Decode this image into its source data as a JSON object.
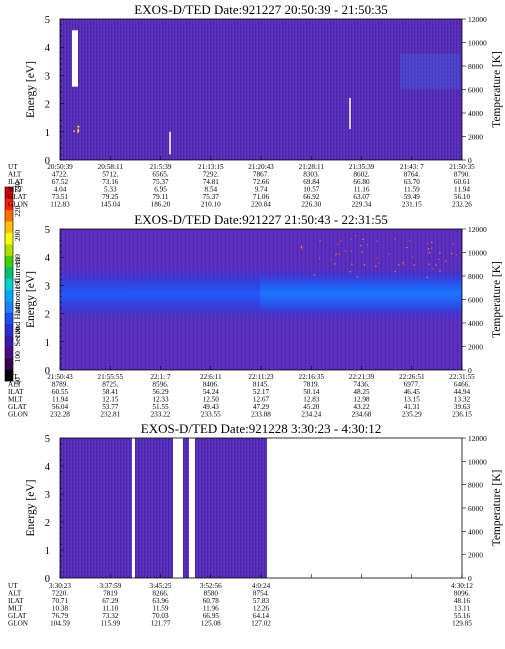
{
  "figure": {
    "y_left_label": "Energy [eV]",
    "y_right_label": "Temperature [K]",
    "colorbar": {
      "label": "Second Harmonic Current",
      "ticks": [
        "80",
        "100",
        "120",
        "140",
        "160",
        "180",
        "200",
        "220",
        "240"
      ],
      "colors": [
        "#000000",
        "#3a0050",
        "#4a0a8a",
        "#3a1aa8",
        "#2b2fd2",
        "#1a50f0",
        "#2080ff",
        "#00a8ff",
        "#00d0d0",
        "#00c070",
        "#40d000",
        "#b0e000",
        "#ffff00",
        "#ffc000",
        "#ff7000",
        "#ff2000",
        "#d00000"
      ]
    }
  },
  "chart_data": [
    {
      "type": "heatmap",
      "title": "EXOS-D/TED   Date:921227  20:50:39 - 21:50:35",
      "ylabel": "Energy [eV]",
      "ylim": [
        0,
        5
      ],
      "yticks": [
        "0",
        "1",
        "2",
        "3",
        "4",
        "5"
      ],
      "y2label": "Temperature [K]",
      "y2lim": [
        0,
        12000
      ],
      "y2ticks": [
        "0",
        "2000",
        "4000",
        "6000",
        "8000",
        "10000",
        "12000"
      ],
      "ephemeris_labels": [
        "UT",
        "ALT",
        "ILAT",
        "MLT",
        "GLAT",
        "GLON"
      ],
      "ephemeris": [
        [
          "20:50:39",
          "20:58:11",
          "21:5:39",
          "21:13:15",
          "21:20:43",
          "21:28:11",
          "21:35:39",
          "21:43: 7",
          "21:50:35"
        ],
        [
          "4722.",
          "5712.",
          "6565.",
          "7292.",
          "7867.",
          "8303.",
          "8602.",
          "8764.",
          "8790."
        ],
        [
          "67.52",
          "73.16",
          "75.37",
          "74.81",
          "72.66",
          "69.84",
          "66.80",
          "63.70",
          "60.61"
        ],
        [
          "4.04",
          "5.33",
          "6.95",
          "8.54",
          "9.74",
          "10.57",
          "11.16",
          "11.59",
          "11.94"
        ],
        [
          "73.51",
          "79.25",
          "79.11",
          "75.37",
          "71.06",
          "66.92",
          "63.07",
          "59.49",
          "56.10"
        ],
        [
          "112.83",
          "145.04",
          "186.20",
          "210.10",
          "220.84",
          "226.30",
          "229.34",
          "231.15",
          "232.26"
        ]
      ]
    },
    {
      "type": "heatmap",
      "title": "EXOS-D/TED   Date:921227  21:50:43 - 22:31:55",
      "ylabel": "Energy [eV]",
      "ylim": [
        0,
        5
      ],
      "yticks": [
        "0",
        "1",
        "2",
        "3",
        "4",
        "5"
      ],
      "y2label": "Temperature [K]",
      "y2lim": [
        0,
        12000
      ],
      "y2ticks": [
        "0",
        "2000",
        "4000",
        "6000",
        "8000",
        "10000",
        "12000"
      ],
      "ephemeris_labels": [
        "UT",
        "ALT",
        "ILAT",
        "MLT",
        "GLAT",
        "GLON"
      ],
      "ephemeris": [
        [
          "21:50:43",
          "21:55:55",
          "22:1: 7",
          "22:6:11",
          "22:11:23",
          "22:16:35",
          "22:21:39",
          "22:26:51",
          "22:31:55"
        ],
        [
          "8789.",
          "8725.",
          "8596.",
          "8406.",
          "8145.",
          "7819.",
          "7436.",
          "6977.",
          "6466."
        ],
        [
          "60.55",
          "58.41",
          "56.29",
          "54.24",
          "52.17",
          "50.14",
          "48.25",
          "46.45",
          "44.94"
        ],
        [
          "11.94",
          "12.15",
          "12.33",
          "12.50",
          "12.67",
          "12.83",
          "12.98",
          "13.15",
          "13.32"
        ],
        [
          "56.04",
          "53.77",
          "51.55",
          "49.43",
          "47.29",
          "45.20",
          "43.22",
          "41.31",
          "39.63"
        ],
        [
          "232.28",
          "232.81",
          "233.22",
          "233.55",
          "233.88",
          "234.24",
          "234.68",
          "235.29",
          "236.15"
        ]
      ]
    },
    {
      "type": "heatmap",
      "title": "EXOS-D/TED   Date:921228  3:30:23 - 4:30:12",
      "ylabel": "Energy [eV]",
      "ylim": [
        0,
        5
      ],
      "yticks": [
        "0",
        "1",
        "2",
        "3",
        "4",
        "5"
      ],
      "y2label": "Temperature [K]",
      "y2lim": [
        0,
        12000
      ],
      "y2ticks": [
        "0",
        "2000",
        "4000",
        "6000",
        "8000",
        "10000",
        "12000"
      ],
      "ephemeris_labels": [
        "UT",
        "ALT",
        "ILAT",
        "MLT",
        "GLAT",
        "GLON"
      ],
      "ephemeris": [
        [
          "3:30:23",
          "3:37:59",
          "3:45:25",
          "3:52:56",
          "4:0:24",
          "",
          "",
          "",
          "4:30:12"
        ],
        [
          "7220.",
          "7819",
          "8266.",
          "8580",
          "8754.",
          "",
          "",
          "",
          "8096."
        ],
        [
          "70.71",
          "67.29",
          "63.96",
          "60.78",
          "57.83",
          "",
          "",
          "",
          "48.16"
        ],
        [
          "10.38",
          "11.10",
          "11.59",
          "11.96",
          "12.26",
          "",
          "",
          "",
          "13.11"
        ],
        [
          "76.79",
          "73.32",
          "70.03",
          "66.95",
          "64.14",
          "",
          "",
          "",
          "55.16"
        ],
        [
          "104.59",
          "115.99",
          "121.77",
          "125.08",
          "127.02",
          "",
          "",
          "",
          "129.85"
        ]
      ]
    }
  ]
}
